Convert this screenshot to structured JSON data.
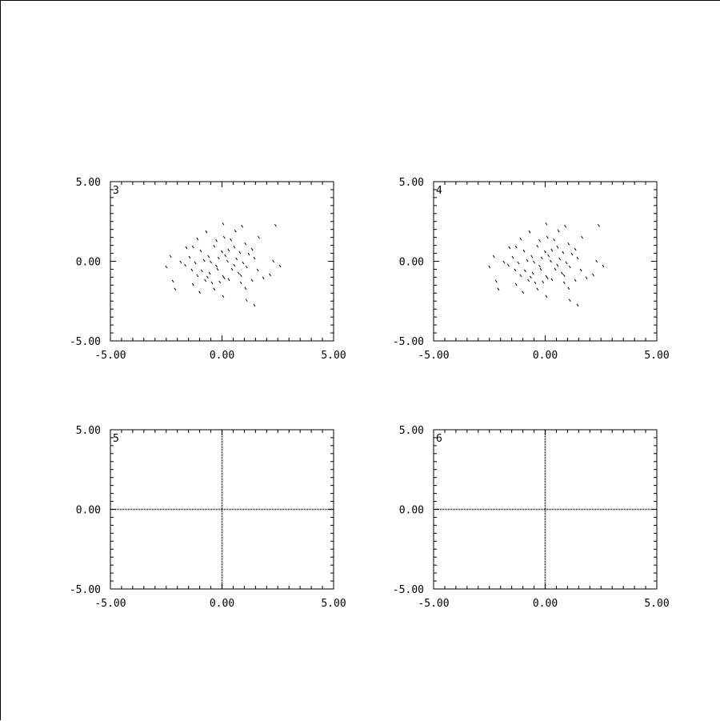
{
  "chart_data": [
    {
      "type": "scatter",
      "panel_label": "3",
      "xlim": [
        -5,
        5
      ],
      "ylim": [
        -5,
        5
      ],
      "xticks": [
        "-5.00",
        "0.00",
        "5.00"
      ],
      "yticks": [
        "-5.00",
        "0.00",
        "5.00"
      ],
      "grid": false,
      "points": [
        [
          0.05,
          2.35
        ],
        [
          0.9,
          2.2
        ],
        [
          2.4,
          2.25
        ],
        [
          -0.7,
          1.85
        ],
        [
          0.6,
          1.9
        ],
        [
          1.65,
          1.5
        ],
        [
          -1.1,
          1.4
        ],
        [
          0.1,
          1.5
        ],
        [
          -0.25,
          1.3
        ],
        [
          0.4,
          1.35
        ],
        [
          1.05,
          1.1
        ],
        [
          -1.6,
          0.85
        ],
        [
          -1.3,
          0.9
        ],
        [
          -0.35,
          0.95
        ],
        [
          0.55,
          0.9
        ],
        [
          1.35,
          0.75
        ],
        [
          -0.95,
          0.65
        ],
        [
          0.0,
          0.6
        ],
        [
          0.3,
          0.7
        ],
        [
          0.8,
          0.55
        ],
        [
          1.2,
          0.45
        ],
        [
          -2.3,
          0.3
        ],
        [
          -1.45,
          0.25
        ],
        [
          -0.6,
          0.3
        ],
        [
          -0.15,
          0.2
        ],
        [
          0.15,
          0.35
        ],
        [
          0.65,
          0.15
        ],
        [
          1.45,
          0.2
        ],
        [
          -1.85,
          -0.05
        ],
        [
          -1.2,
          -0.1
        ],
        [
          -0.5,
          -0.05
        ],
        [
          0.25,
          0.0
        ],
        [
          0.95,
          -0.1
        ],
        [
          2.3,
          0.0
        ],
        [
          -2.5,
          -0.35
        ],
        [
          -1.65,
          -0.25
        ],
        [
          -0.25,
          -0.3
        ],
        [
          1.1,
          -0.35
        ],
        [
          2.6,
          -0.3
        ],
        [
          -1.35,
          -0.55
        ],
        [
          -0.9,
          -0.6
        ],
        [
          -0.55,
          -0.75
        ],
        [
          -0.2,
          -0.5
        ],
        [
          0.45,
          -0.5
        ],
        [
          0.75,
          -0.75
        ],
        [
          1.6,
          -0.55
        ],
        [
          -1.1,
          -0.9
        ],
        [
          -0.65,
          -1.0
        ],
        [
          0.05,
          -0.95
        ],
        [
          0.85,
          -0.9
        ],
        [
          1.85,
          -1.05
        ],
        [
          -2.2,
          -1.25
        ],
        [
          -0.75,
          -1.2
        ],
        [
          0.3,
          -1.15
        ],
        [
          1.35,
          -1.2
        ],
        [
          -1.3,
          -1.45
        ],
        [
          -0.1,
          -1.3
        ],
        [
          0.85,
          -1.35
        ],
        [
          -2.1,
          -1.75
        ],
        [
          -0.35,
          -1.75
        ],
        [
          0.05,
          -2.2
        ],
        [
          1.05,
          -1.7
        ],
        [
          -1.0,
          -1.95
        ],
        [
          1.1,
          -2.45
        ],
        [
          1.45,
          -2.75
        ],
        [
          0.1,
          -1.05
        ],
        [
          -0.45,
          -1.35
        ],
        [
          2.15,
          -0.85
        ],
        [
          0.55,
          -0.25
        ],
        [
          -0.8,
          0.05
        ]
      ]
    },
    {
      "type": "scatter",
      "panel_label": "4",
      "xlim": [
        -5,
        5
      ],
      "ylim": [
        -5,
        5
      ],
      "xticks": [
        "-5.00",
        "0.00",
        "5.00"
      ],
      "yticks": [
        "-5.00",
        "0.00",
        "5.00"
      ],
      "grid": false,
      "points": [
        [
          0.05,
          2.35
        ],
        [
          0.9,
          2.2
        ],
        [
          2.4,
          2.25
        ],
        [
          -0.7,
          1.85
        ],
        [
          0.6,
          1.9
        ],
        [
          1.65,
          1.5
        ],
        [
          -1.1,
          1.4
        ],
        [
          0.1,
          1.5
        ],
        [
          -0.25,
          1.3
        ],
        [
          0.4,
          1.35
        ],
        [
          1.05,
          1.1
        ],
        [
          -1.6,
          0.85
        ],
        [
          -1.3,
          0.9
        ],
        [
          -0.35,
          0.95
        ],
        [
          0.55,
          0.9
        ],
        [
          1.35,
          0.75
        ],
        [
          -0.95,
          0.65
        ],
        [
          0.0,
          0.6
        ],
        [
          0.3,
          0.7
        ],
        [
          0.8,
          0.55
        ],
        [
          1.2,
          0.45
        ],
        [
          -2.3,
          0.3
        ],
        [
          -1.45,
          0.25
        ],
        [
          -0.6,
          0.3
        ],
        [
          -0.15,
          0.2
        ],
        [
          0.15,
          0.35
        ],
        [
          0.65,
          0.15
        ],
        [
          1.45,
          0.2
        ],
        [
          -1.85,
          -0.05
        ],
        [
          -1.2,
          -0.1
        ],
        [
          -0.5,
          -0.05
        ],
        [
          0.25,
          0.0
        ],
        [
          0.95,
          -0.1
        ],
        [
          2.3,
          0.0
        ],
        [
          -2.5,
          -0.35
        ],
        [
          -1.65,
          -0.25
        ],
        [
          -0.25,
          -0.3
        ],
        [
          1.1,
          -0.35
        ],
        [
          2.6,
          -0.3
        ],
        [
          -1.35,
          -0.55
        ],
        [
          -0.9,
          -0.6
        ],
        [
          -0.55,
          -0.75
        ],
        [
          -0.2,
          -0.5
        ],
        [
          0.45,
          -0.5
        ],
        [
          0.75,
          -0.75
        ],
        [
          1.6,
          -0.55
        ],
        [
          -1.1,
          -0.9
        ],
        [
          -0.65,
          -1.0
        ],
        [
          0.05,
          -0.95
        ],
        [
          0.85,
          -0.9
        ],
        [
          1.85,
          -1.05
        ],
        [
          -2.2,
          -1.25
        ],
        [
          -0.75,
          -1.2
        ],
        [
          0.3,
          -1.15
        ],
        [
          1.35,
          -1.2
        ],
        [
          -1.3,
          -1.45
        ],
        [
          -0.1,
          -1.3
        ],
        [
          0.85,
          -1.35
        ],
        [
          -2.1,
          -1.75
        ],
        [
          -0.35,
          -1.75
        ],
        [
          0.05,
          -2.2
        ],
        [
          1.05,
          -1.7
        ],
        [
          -1.0,
          -1.95
        ],
        [
          1.1,
          -2.45
        ],
        [
          1.45,
          -2.75
        ],
        [
          0.1,
          -1.05
        ],
        [
          -0.45,
          -1.35
        ],
        [
          2.15,
          -0.85
        ],
        [
          0.55,
          -0.25
        ],
        [
          -0.8,
          0.05
        ]
      ]
    },
    {
      "type": "line",
      "panel_label": "5",
      "xlim": [
        -5,
        5
      ],
      "ylim": [
        -5,
        5
      ],
      "xticks": [
        "-5.00",
        "0.00",
        "5.00"
      ],
      "yticks": [
        "-5.00",
        "0.00",
        "5.00"
      ],
      "grid": false,
      "crosshair_at": [
        0,
        0
      ]
    },
    {
      "type": "line",
      "panel_label": "6",
      "xlim": [
        -5,
        5
      ],
      "ylim": [
        -5,
        5
      ],
      "xticks": [
        "-5.00",
        "0.00",
        "5.00"
      ],
      "yticks": [
        "-5.00",
        "0.00",
        "5.00"
      ],
      "grid": false,
      "crosshair_at": [
        0,
        0
      ]
    }
  ]
}
